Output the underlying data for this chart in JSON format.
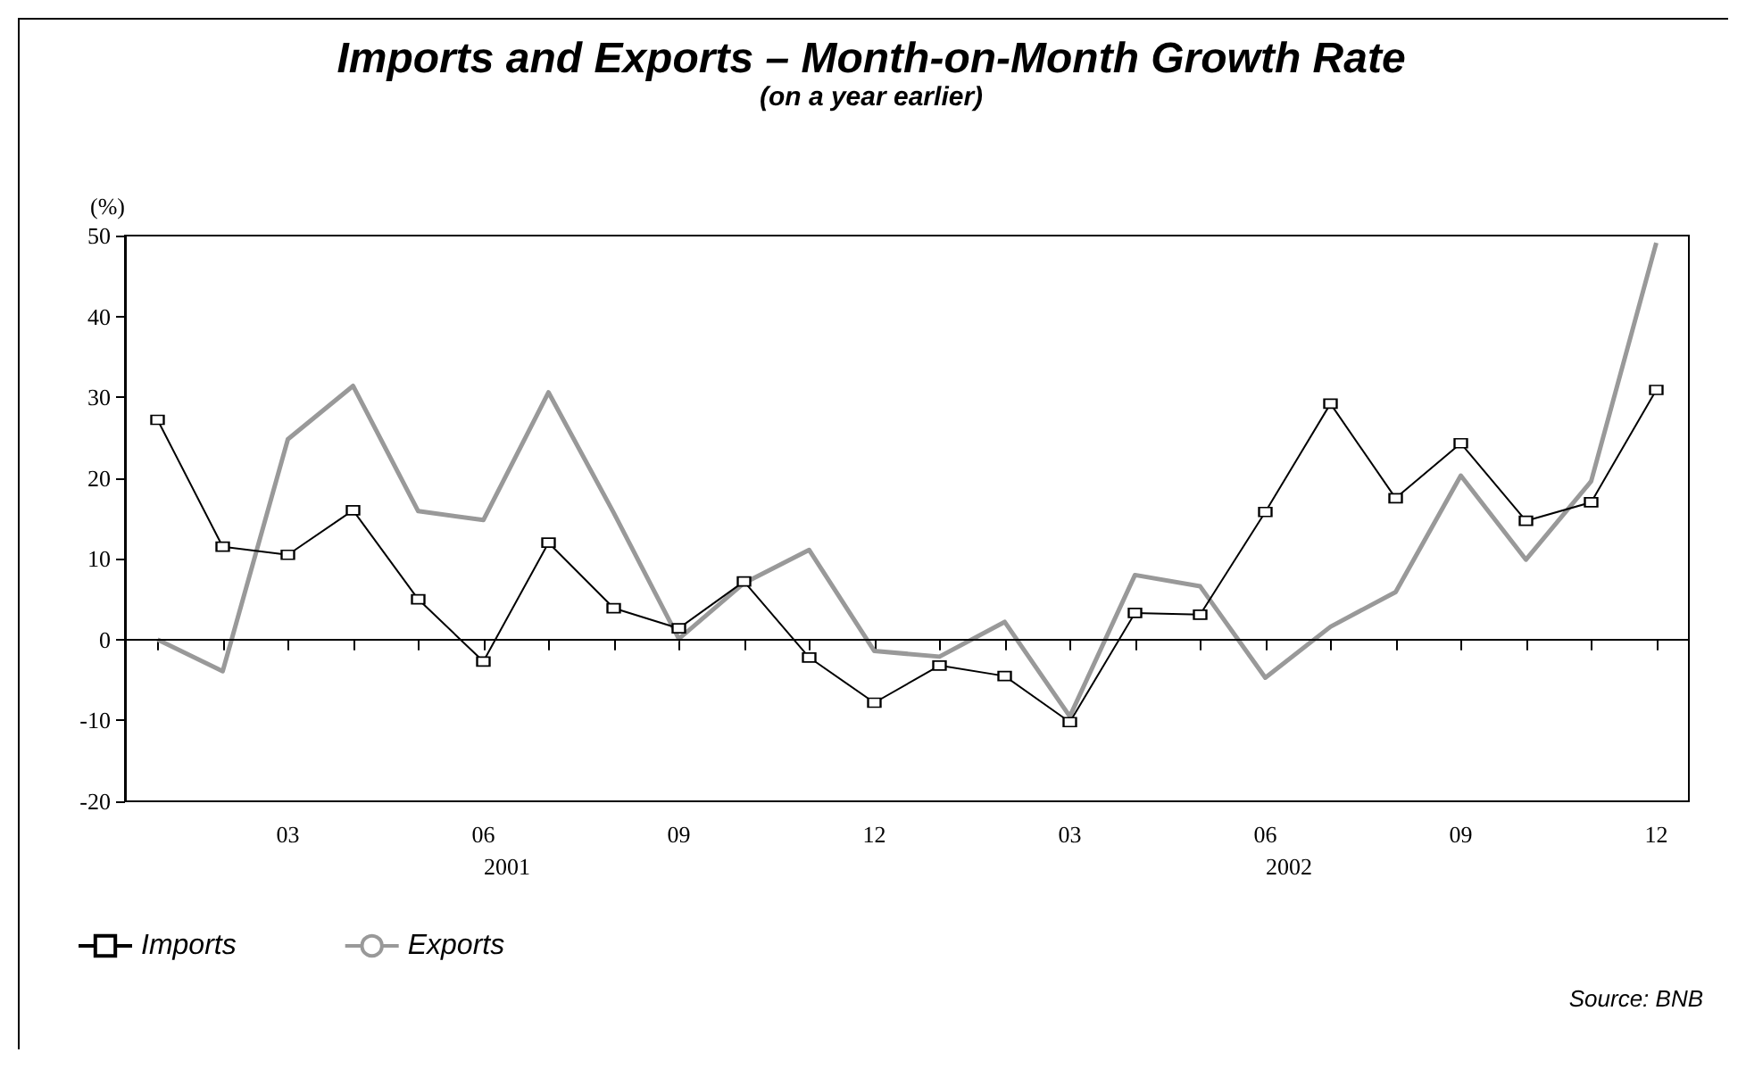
{
  "chart_data": {
    "type": "line",
    "title": "Imports and Exports – Month-on-Month Growth Rate",
    "subtitle": "(on a year earlier)",
    "ylabel": "(%)",
    "categories": [
      null,
      null,
      "03",
      null,
      null,
      "06",
      null,
      null,
      "09",
      null,
      null,
      "12",
      null,
      null,
      "03",
      null,
      null,
      "06",
      null,
      null,
      "09",
      null,
      null,
      "12"
    ],
    "series": [
      {
        "name": "Imports",
        "color": "#000000",
        "marker": "square",
        "values": [
          27.2,
          11.5,
          10.5,
          16,
          5,
          -2.7,
          12,
          3.9,
          1.4,
          7.2,
          -2.2,
          -7.8,
          -3.2,
          -4.5,
          -10.2,
          3.3,
          3.1,
          15.8,
          29.2,
          17.5,
          24.3,
          14.7,
          17,
          30.9
        ]
      },
      {
        "name": "Exports",
        "color": "#999999",
        "marker": "none",
        "values": [
          0,
          -3.9,
          24.8,
          31.4,
          15.9,
          14.8,
          30.6,
          15.7,
          0.1,
          7,
          11.1,
          -1.4,
          -2.1,
          2.2,
          -9.5,
          8,
          6.6,
          -4.7,
          1.6,
          5.9,
          20.3,
          9.9,
          19.6,
          49.1
        ]
      }
    ],
    "ylim": [
      -20,
      50
    ],
    "yticks": [
      -20,
      -10,
      0,
      10,
      20,
      30,
      40,
      50
    ],
    "grid": false,
    "legend": "bottom left",
    "ref_lines": [
      {
        "axis": "y",
        "value": 0,
        "color": "#000000"
      }
    ],
    "annotations": [
      "2001",
      "2002",
      "Source: BNB"
    ]
  }
}
